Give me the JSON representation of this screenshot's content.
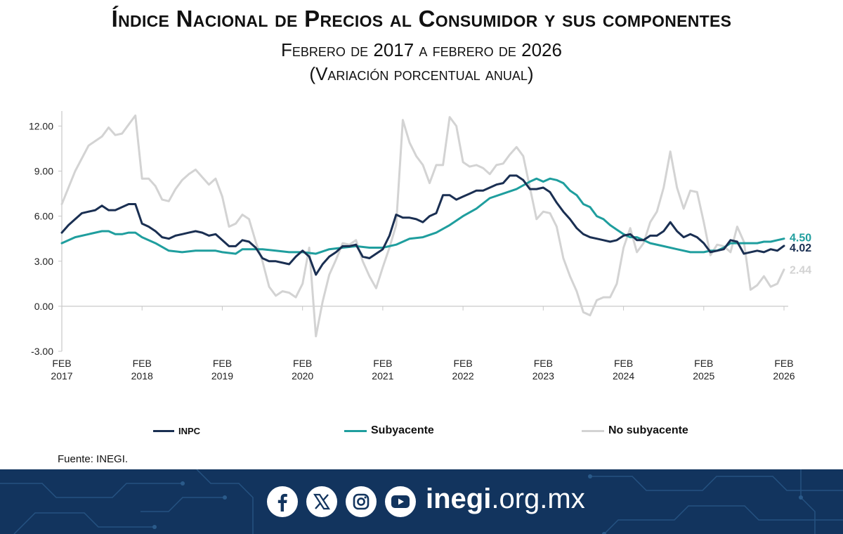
{
  "header": {
    "title": "Índice Nacional de Precios al Consumidor y sus componentes",
    "subtitle1": "Febrero de 2017 a febrero de 2026",
    "subtitle2": "(Variación porcentual anual)"
  },
  "chart_data": {
    "type": "line",
    "ylim": [
      -3,
      13
    ],
    "yticks": [
      "-3.00",
      "0.00",
      "3.00",
      "6.00",
      "9.00",
      "12.00"
    ],
    "xlim": [
      0,
      108
    ],
    "xticks": [
      {
        "line1": "FEB",
        "line2": "2017",
        "at": 0
      },
      {
        "line1": "FEB",
        "line2": "2018",
        "at": 12
      },
      {
        "line1": "FEB",
        "line2": "2019",
        "at": 24
      },
      {
        "line1": "FEB",
        "line2": "2020",
        "at": 36
      },
      {
        "line1": "FEB",
        "line2": "2021",
        "at": 48
      },
      {
        "line1": "FEB",
        "line2": "2022",
        "at": 60
      },
      {
        "line1": "FEB",
        "line2": "2023",
        "at": 72
      },
      {
        "line1": "FEB",
        "line2": "2024",
        "at": 84
      },
      {
        "line1": "FEB",
        "line2": "2025",
        "at": 96
      },
      {
        "line1": "FEB",
        "line2": "2026",
        "at": 108
      }
    ],
    "grid": false,
    "legend_position": "bottom",
    "series": [
      {
        "name": "No subyacente",
        "color": "#d3d3d3",
        "end_label": "2.44",
        "points": [
          [
            0,
            6.8
          ],
          [
            2,
            9.0
          ],
          [
            4,
            10.7
          ],
          [
            6,
            11.3
          ],
          [
            7,
            11.9
          ],
          [
            8,
            11.4
          ],
          [
            9,
            11.5
          ],
          [
            10,
            12.1
          ],
          [
            11,
            12.7
          ],
          [
            12,
            8.5
          ],
          [
            13,
            8.5
          ],
          [
            14,
            8.0
          ],
          [
            15,
            7.1
          ],
          [
            16,
            7.0
          ],
          [
            17,
            7.8
          ],
          [
            18,
            8.4
          ],
          [
            19,
            8.8
          ],
          [
            20,
            9.1
          ],
          [
            21,
            8.6
          ],
          [
            22,
            8.1
          ],
          [
            23,
            8.5
          ],
          [
            24,
            7.3
          ],
          [
            25,
            5.3
          ],
          [
            26,
            5.5
          ],
          [
            27,
            6.1
          ],
          [
            28,
            5.8
          ],
          [
            29,
            4.3
          ],
          [
            30,
            3.0
          ],
          [
            31,
            1.3
          ],
          [
            32,
            0.7
          ],
          [
            33,
            1.0
          ],
          [
            34,
            0.9
          ],
          [
            35,
            0.6
          ],
          [
            36,
            1.5
          ],
          [
            37,
            3.9
          ],
          [
            38,
            -2.0
          ],
          [
            39,
            0.3
          ],
          [
            40,
            2.1
          ],
          [
            41,
            3.1
          ],
          [
            42,
            4.2
          ],
          [
            43,
            4.1
          ],
          [
            44,
            4.4
          ],
          [
            45,
            3.0
          ],
          [
            46,
            2.0
          ],
          [
            47,
            1.2
          ],
          [
            48,
            2.6
          ],
          [
            49,
            3.9
          ],
          [
            50,
            5.4
          ],
          [
            51,
            12.4
          ],
          [
            52,
            10.9
          ],
          [
            53,
            10.0
          ],
          [
            54,
            9.4
          ],
          [
            55,
            8.2
          ],
          [
            56,
            9.4
          ],
          [
            57,
            9.4
          ],
          [
            58,
            12.6
          ],
          [
            59,
            12.0
          ],
          [
            60,
            9.6
          ],
          [
            61,
            9.3
          ],
          [
            62,
            9.4
          ],
          [
            63,
            9.2
          ],
          [
            64,
            8.8
          ],
          [
            65,
            9.4
          ],
          [
            66,
            9.5
          ],
          [
            67,
            10.1
          ],
          [
            68,
            10.6
          ],
          [
            69,
            10.0
          ],
          [
            70,
            7.9
          ],
          [
            71,
            5.8
          ],
          [
            72,
            6.3
          ],
          [
            73,
            6.2
          ],
          [
            74,
            5.3
          ],
          [
            75,
            3.2
          ],
          [
            76,
            2.0
          ],
          [
            77,
            1.0
          ],
          [
            78,
            -0.4
          ],
          [
            79,
            -0.6
          ],
          [
            80,
            0.4
          ],
          [
            81,
            0.6
          ],
          [
            82,
            0.6
          ],
          [
            83,
            1.5
          ],
          [
            84,
            3.9
          ],
          [
            85,
            5.2
          ],
          [
            86,
            3.6
          ],
          [
            87,
            4.2
          ],
          [
            88,
            5.6
          ],
          [
            89,
            6.3
          ],
          [
            90,
            7.9
          ],
          [
            91,
            10.3
          ],
          [
            92,
            7.9
          ],
          [
            93,
            6.5
          ],
          [
            94,
            7.7
          ],
          [
            95,
            7.6
          ],
          [
            96,
            5.6
          ],
          [
            97,
            3.4
          ],
          [
            98,
            4.1
          ],
          [
            99,
            4.0
          ],
          [
            100,
            3.6
          ],
          [
            101,
            5.3
          ],
          [
            102,
            4.3
          ],
          [
            103,
            1.1
          ],
          [
            104,
            1.4
          ],
          [
            105,
            2.0
          ],
          [
            106,
            1.3
          ],
          [
            107,
            1.5
          ],
          [
            108,
            2.44
          ]
        ]
      },
      {
        "name": "Subyacente",
        "color": "#1f9e9e",
        "end_label": "4.50",
        "points": [
          [
            0,
            4.2
          ],
          [
            2,
            4.6
          ],
          [
            4,
            4.8
          ],
          [
            6,
            5.0
          ],
          [
            7,
            5.0
          ],
          [
            8,
            4.8
          ],
          [
            9,
            4.8
          ],
          [
            10,
            4.9
          ],
          [
            11,
            4.9
          ],
          [
            12,
            4.6
          ],
          [
            14,
            4.2
          ],
          [
            16,
            3.7
          ],
          [
            18,
            3.6
          ],
          [
            20,
            3.7
          ],
          [
            22,
            3.7
          ],
          [
            23,
            3.7
          ],
          [
            24,
            3.6
          ],
          [
            26,
            3.5
          ],
          [
            27,
            3.8
          ],
          [
            28,
            3.8
          ],
          [
            30,
            3.8
          ],
          [
            32,
            3.7
          ],
          [
            34,
            3.6
          ],
          [
            36,
            3.6
          ],
          [
            38,
            3.5
          ],
          [
            40,
            3.8
          ],
          [
            42,
            3.9
          ],
          [
            44,
            4.0
          ],
          [
            46,
            3.9
          ],
          [
            48,
            3.9
          ],
          [
            50,
            4.1
          ],
          [
            52,
            4.5
          ],
          [
            54,
            4.6
          ],
          [
            56,
            4.9
          ],
          [
            58,
            5.4
          ],
          [
            60,
            6.0
          ],
          [
            62,
            6.5
          ],
          [
            64,
            7.2
          ],
          [
            66,
            7.5
          ],
          [
            68,
            7.8
          ],
          [
            70,
            8.3
          ],
          [
            71,
            8.5
          ],
          [
            72,
            8.3
          ],
          [
            73,
            8.5
          ],
          [
            74,
            8.4
          ],
          [
            75,
            8.2
          ],
          [
            76,
            7.7
          ],
          [
            77,
            7.4
          ],
          [
            78,
            6.8
          ],
          [
            79,
            6.6
          ],
          [
            80,
            6.0
          ],
          [
            81,
            5.8
          ],
          [
            82,
            5.4
          ],
          [
            83,
            5.1
          ],
          [
            84,
            4.8
          ],
          [
            85,
            4.6
          ],
          [
            86,
            4.6
          ],
          [
            87,
            4.4
          ],
          [
            88,
            4.2
          ],
          [
            90,
            4.0
          ],
          [
            92,
            3.8
          ],
          [
            94,
            3.6
          ],
          [
            95,
            3.6
          ],
          [
            96,
            3.6
          ],
          [
            97,
            3.7
          ],
          [
            98,
            3.7
          ],
          [
            99,
            3.9
          ],
          [
            100,
            4.2
          ],
          [
            101,
            4.2
          ],
          [
            102,
            4.2
          ],
          [
            103,
            4.2
          ],
          [
            104,
            4.2
          ],
          [
            105,
            4.3
          ],
          [
            106,
            4.3
          ],
          [
            107,
            4.4
          ],
          [
            108,
            4.5
          ]
        ]
      },
      {
        "name": "INPC",
        "color": "#1a2f52",
        "end_label": "4.02",
        "points": [
          [
            0,
            4.9
          ],
          [
            1,
            5.4
          ],
          [
            2,
            5.8
          ],
          [
            3,
            6.2
          ],
          [
            4,
            6.3
          ],
          [
            5,
            6.4
          ],
          [
            6,
            6.7
          ],
          [
            7,
            6.4
          ],
          [
            8,
            6.4
          ],
          [
            9,
            6.6
          ],
          [
            10,
            6.8
          ],
          [
            11,
            6.8
          ],
          [
            12,
            5.5
          ],
          [
            13,
            5.3
          ],
          [
            14,
            5.0
          ],
          [
            15,
            4.6
          ],
          [
            16,
            4.5
          ],
          [
            17,
            4.7
          ],
          [
            18,
            4.8
          ],
          [
            19,
            4.9
          ],
          [
            20,
            5.0
          ],
          [
            21,
            4.9
          ],
          [
            22,
            4.7
          ],
          [
            23,
            4.8
          ],
          [
            24,
            4.4
          ],
          [
            25,
            4.0
          ],
          [
            26,
            4.0
          ],
          [
            27,
            4.4
          ],
          [
            28,
            4.3
          ],
          [
            29,
            3.9
          ],
          [
            30,
            3.2
          ],
          [
            31,
            3.0
          ],
          [
            32,
            3.0
          ],
          [
            33,
            2.9
          ],
          [
            34,
            2.8
          ],
          [
            35,
            3.3
          ],
          [
            36,
            3.7
          ],
          [
            37,
            3.3
          ],
          [
            38,
            2.1
          ],
          [
            39,
            2.8
          ],
          [
            40,
            3.3
          ],
          [
            41,
            3.6
          ],
          [
            42,
            4.0
          ],
          [
            43,
            4.0
          ],
          [
            44,
            4.1
          ],
          [
            45,
            3.3
          ],
          [
            46,
            3.2
          ],
          [
            47,
            3.5
          ],
          [
            48,
            3.8
          ],
          [
            49,
            4.7
          ],
          [
            50,
            6.1
          ],
          [
            51,
            5.9
          ],
          [
            52,
            5.9
          ],
          [
            53,
            5.8
          ],
          [
            54,
            5.6
          ],
          [
            55,
            6.0
          ],
          [
            56,
            6.2
          ],
          [
            57,
            7.4
          ],
          [
            58,
            7.4
          ],
          [
            59,
            7.1
          ],
          [
            60,
            7.3
          ],
          [
            61,
            7.5
          ],
          [
            62,
            7.7
          ],
          [
            63,
            7.7
          ],
          [
            64,
            7.9
          ],
          [
            65,
            8.1
          ],
          [
            66,
            8.2
          ],
          [
            67,
            8.7
          ],
          [
            68,
            8.7
          ],
          [
            69,
            8.4
          ],
          [
            70,
            7.8
          ],
          [
            71,
            7.8
          ],
          [
            72,
            7.9
          ],
          [
            73,
            7.6
          ],
          [
            74,
            6.9
          ],
          [
            75,
            6.3
          ],
          [
            76,
            5.8
          ],
          [
            77,
            5.2
          ],
          [
            78,
            4.8
          ],
          [
            79,
            4.6
          ],
          [
            80,
            4.5
          ],
          [
            81,
            4.4
          ],
          [
            82,
            4.3
          ],
          [
            83,
            4.4
          ],
          [
            84,
            4.7
          ],
          [
            85,
            4.8
          ],
          [
            86,
            4.4
          ],
          [
            87,
            4.4
          ],
          [
            88,
            4.7
          ],
          [
            89,
            4.7
          ],
          [
            90,
            5.0
          ],
          [
            91,
            5.6
          ],
          [
            92,
            5.0
          ],
          [
            93,
            4.6
          ],
          [
            94,
            4.8
          ],
          [
            95,
            4.6
          ],
          [
            96,
            4.2
          ],
          [
            97,
            3.6
          ],
          [
            98,
            3.7
          ],
          [
            99,
            3.8
          ],
          [
            100,
            4.4
          ],
          [
            101,
            4.3
          ],
          [
            102,
            3.5
          ],
          [
            103,
            3.6
          ],
          [
            104,
            3.7
          ],
          [
            105,
            3.6
          ],
          [
            106,
            3.8
          ],
          [
            107,
            3.7
          ],
          [
            108,
            4.02
          ]
        ]
      }
    ]
  },
  "legend": {
    "items": [
      {
        "label": "INPC",
        "color": "#1a2f52"
      },
      {
        "label": "Subyacente",
        "color": "#1f9e9e"
      },
      {
        "label": "No subyacente",
        "color": "#d3d3d3"
      }
    ]
  },
  "source": "Fuente: INEGI.",
  "footer": {
    "bg_color": "#12345e",
    "social_icons": [
      "facebook-icon",
      "x-icon",
      "instagram-icon",
      "youtube-icon"
    ],
    "site_bold": "inegi",
    "site_rest": ".org.mx"
  }
}
